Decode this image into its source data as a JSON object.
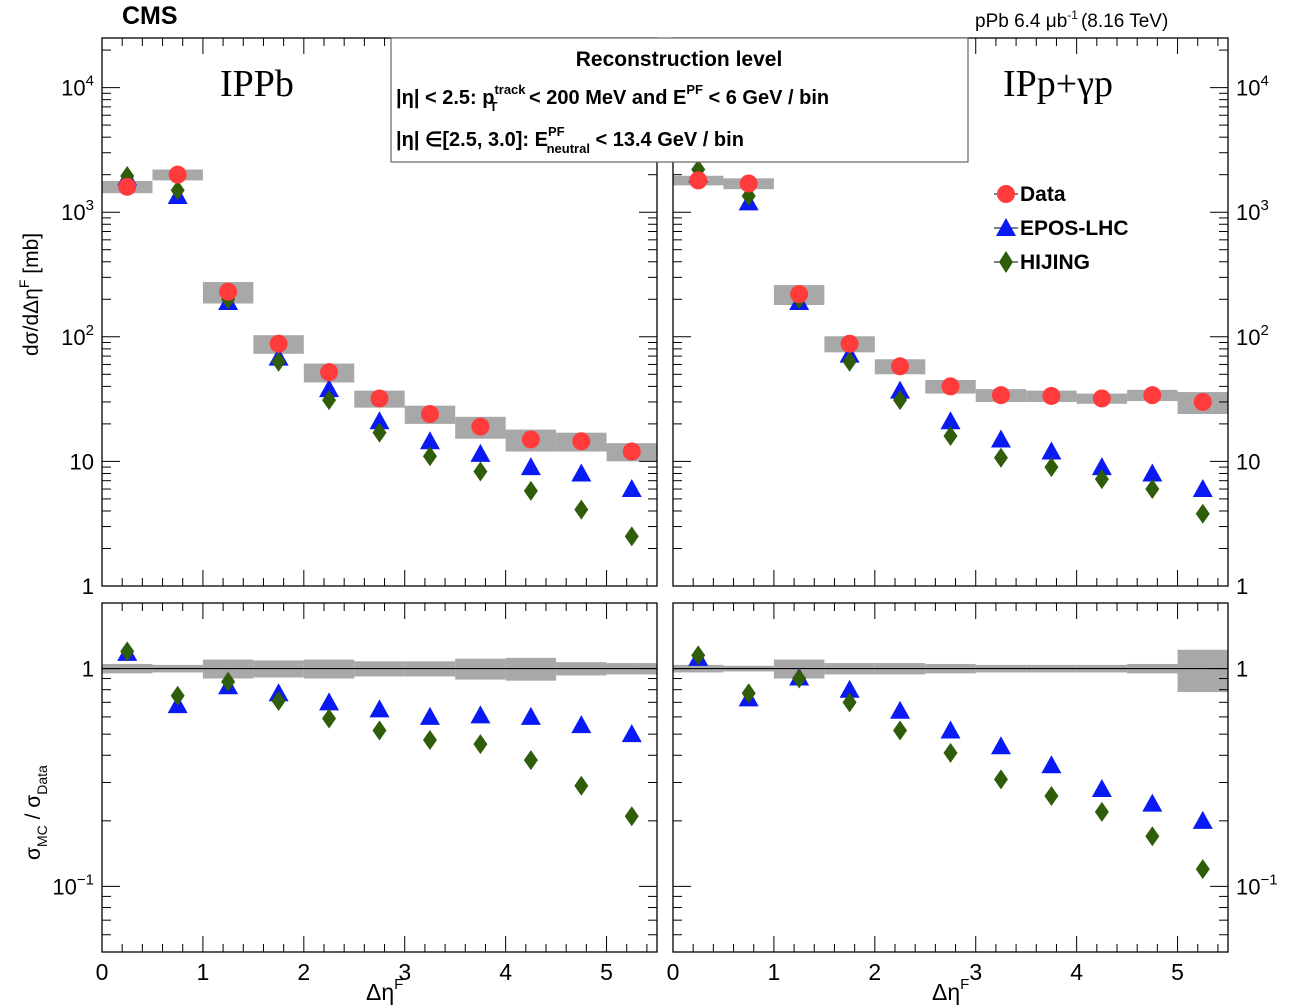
{
  "header": {
    "experiment": "CMS",
    "lumi": "pPb 6.4 μb",
    "lumi_exp": "-1",
    "energy": "(8.16 TeV)"
  },
  "panels": {
    "left_label": "IPPb",
    "right_label": "IPp+γp"
  },
  "infobox": {
    "title": "Reconstruction level",
    "line1": {
      "a": "|η| < 2.5:  p",
      "sup": "track",
      "sub": "T",
      "b": " < 200 MeV  and  E",
      "sup2": "PF",
      "c": " < 6 GeV / bin"
    },
    "line2": {
      "a": "|η|  ∈[2.5, 3.0]:  E",
      "sup": "PF",
      "sub": "neutral",
      "b": " < 13.4 GeV / bin"
    }
  },
  "axes": {
    "top_ylabel": "dσ/dΔη",
    "top_ylabel_sup": "F",
    "top_ylabel_unit": " [mb]",
    "bottom_ylabel_a": "σ",
    "bottom_ylabel_sub1": "MC",
    "bottom_ylabel_b": " / σ",
    "bottom_ylabel_sub2": "Data",
    "xlabel": "Δη",
    "xlabel_sup": "F",
    "x_ticks": [
      "0",
      "1",
      "2",
      "3",
      "4",
      "5"
    ],
    "top_y_ticks": [
      "1",
      "10"
    ],
    "top_y_pow": [
      "10",
      "10",
      "10"
    ],
    "top_y_pow_exp": [
      "2",
      "3",
      "4"
    ],
    "bottom_y_ticks": [
      "1"
    ],
    "bottom_y_pow": "10",
    "bottom_y_pow_exp": "−1"
  },
  "legend": [
    "Data",
    "EPOS-LHC",
    "HIJING"
  ],
  "colors": {
    "data": "#ff3b3b",
    "epos": "#0a1af5",
    "hijing": "#2f5d0a",
    "band": "#a8a8a8"
  },
  "chart_data": [
    {
      "type": "scatter",
      "panel": "IPPb",
      "x": [
        0.25,
        0.75,
        1.25,
        1.75,
        2.25,
        2.75,
        3.25,
        3.75,
        4.25,
        4.75,
        5.25
      ],
      "xlim": [
        0,
        5.5
      ],
      "ylim": [
        1,
        25000
      ],
      "yscale": "log",
      "series": [
        {
          "name": "Data",
          "values": [
            1600,
            2000,
            230,
            88,
            52,
            32,
            24,
            19,
            15,
            14.5,
            12
          ]
        },
        {
          "name": "EPOS-LHC",
          "values": [
            1900,
            1350,
            190,
            68,
            38,
            21,
            14.5,
            11.5,
            9,
            8,
            6
          ]
        },
        {
          "name": "HIJING",
          "values": [
            1950,
            1500,
            200,
            63,
            31,
            17,
            11,
            8.3,
            5.8,
            4.1,
            2.5
          ]
        }
      ],
      "systematics": [
        180,
        200,
        45,
        15,
        9,
        5,
        4,
        3.8,
        3,
        2.5,
        2
      ],
      "ratio": {
        "ylim": [
          0.05,
          2
        ],
        "yscale": "log",
        "series": [
          {
            "name": "EPOS-LHC",
            "values": [
              1.18,
              0.68,
              0.83,
              0.77,
              0.7,
              0.65,
              0.6,
              0.61,
              0.6,
              0.55,
              0.5
            ]
          },
          {
            "name": "HIJING",
            "values": [
              1.2,
              0.75,
              0.87,
              0.71,
              0.59,
              0.52,
              0.47,
              0.45,
              0.38,
              0.29,
              0.21
            ]
          }
        ],
        "band_halfwidth": [
          0.05,
          0.04,
          0.1,
          0.09,
          0.1,
          0.08,
          0.08,
          0.11,
          0.12,
          0.07,
          0.06
        ]
      }
    },
    {
      "type": "scatter",
      "panel": "IPp+γp",
      "x": [
        0.25,
        0.75,
        1.25,
        1.75,
        2.25,
        2.75,
        3.25,
        3.75,
        4.25,
        4.75,
        5.25
      ],
      "xlim": [
        0,
        5.5
      ],
      "ylim": [
        1,
        25000
      ],
      "yscale": "log",
      "series": [
        {
          "name": "Data",
          "values": [
            1800,
            1700,
            220,
            88,
            58,
            40,
            34,
            33.5,
            32,
            34,
            30
          ]
        },
        {
          "name": "EPOS-LHC",
          "values": [
            2000,
            1200,
            190,
            72,
            37,
            21,
            15,
            12,
            9,
            8,
            6
          ]
        },
        {
          "name": "HIJING",
          "values": [
            2200,
            1350,
            200,
            63,
            31,
            16,
            10.7,
            9,
            7.2,
            6,
            3.8
          ]
        }
      ],
      "systematics": [
        160,
        170,
        40,
        13,
        8,
        5,
        4,
        3.5,
        3,
        3.5,
        6
      ],
      "ratio": {
        "ylim": [
          0.05,
          2
        ],
        "yscale": "log",
        "series": [
          {
            "name": "EPOS-LHC",
            "values": [
              1.12,
              0.73,
              0.91,
              0.8,
              0.64,
              0.52,
              0.44,
              0.36,
              0.28,
              0.24,
              0.2
            ]
          },
          {
            "name": "HIJING",
            "values": [
              1.15,
              0.77,
              0.9,
              0.7,
              0.52,
              0.41,
              0.31,
              0.26,
              0.22,
              0.17,
              0.12
            ]
          }
        ],
        "band_halfwidth": [
          0.04,
          0.03,
          0.1,
          0.06,
          0.06,
          0.05,
          0.04,
          0.04,
          0.04,
          0.05,
          0.22
        ]
      }
    }
  ]
}
